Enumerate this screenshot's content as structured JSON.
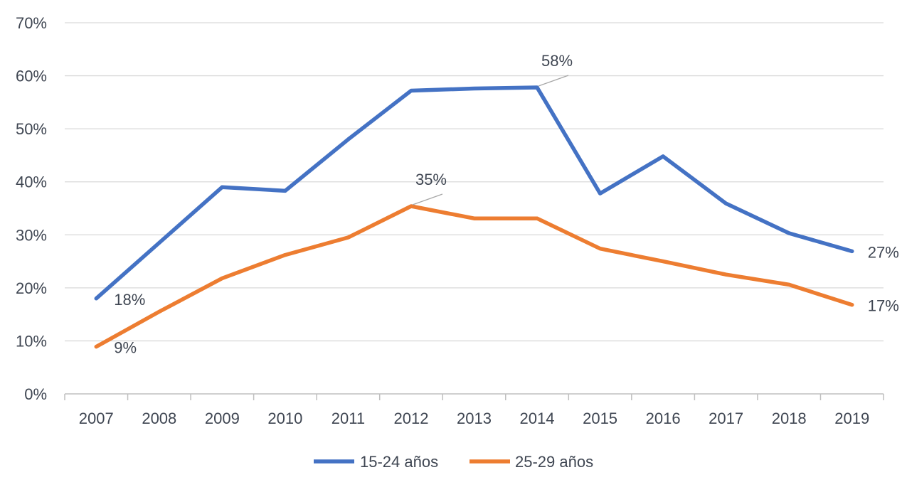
{
  "chart_data": {
    "type": "line",
    "title": "",
    "xlabel": "",
    "ylabel": "",
    "categories": [
      "2007",
      "2008",
      "2009",
      "2010",
      "2011",
      "2012",
      "2013",
      "2014",
      "2015",
      "2016",
      "2017",
      "2018",
      "2019"
    ],
    "ylim": [
      0,
      70
    ],
    "yticks": [
      0,
      10,
      20,
      30,
      40,
      50,
      60,
      70
    ],
    "ytick_labels": [
      "0%",
      "10%",
      "20%",
      "30%",
      "40%",
      "50%",
      "60%",
      "70%"
    ],
    "grid": true,
    "legend_position": "bottom",
    "series": [
      {
        "name": "15-24 años",
        "color": "#4472c4",
        "values": [
          18,
          28.5,
          39,
          38.3,
          48,
          57.2,
          57.6,
          57.8,
          37.8,
          44.8,
          35.9,
          30.3,
          26.9
        ]
      },
      {
        "name": "25-29 años",
        "color": "#ed7d31",
        "values": [
          8.9,
          15.5,
          21.8,
          26.2,
          29.5,
          35.4,
          33.1,
          33.1,
          27.4,
          25,
          22.5,
          20.6,
          16.8
        ]
      }
    ],
    "annotations": [
      {
        "series": 0,
        "index": 0,
        "text": "18%"
      },
      {
        "series": 0,
        "index": 7,
        "text": "58%"
      },
      {
        "series": 0,
        "index": 12,
        "text": "27%"
      },
      {
        "series": 1,
        "index": 0,
        "text": "9%"
      },
      {
        "series": 1,
        "index": 5,
        "text": "35%"
      },
      {
        "series": 1,
        "index": 12,
        "text": "17%"
      }
    ]
  }
}
